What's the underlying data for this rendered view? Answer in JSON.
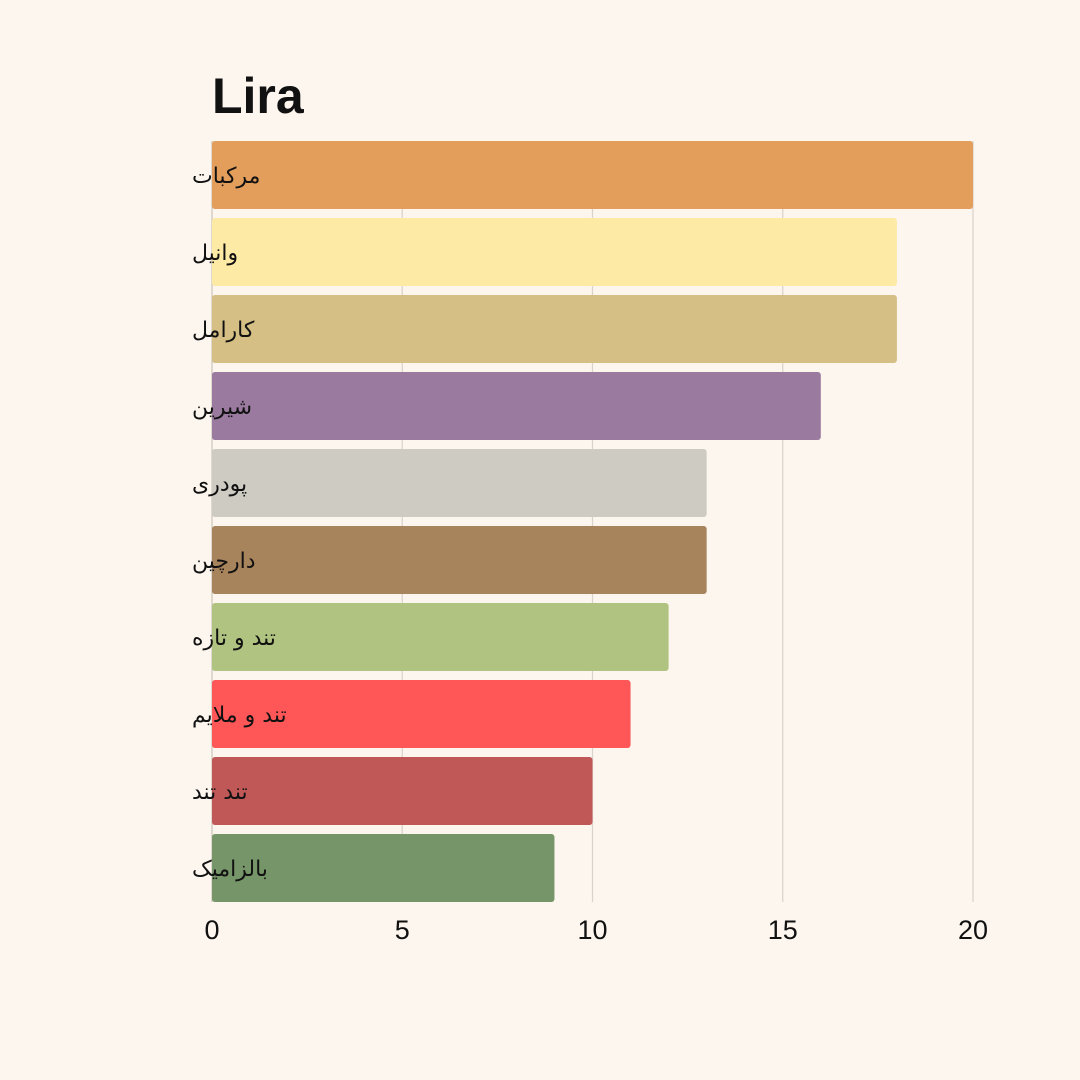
{
  "chart_data": {
    "type": "bar",
    "orientation": "horizontal",
    "title": "Lira",
    "xlabel": "",
    "ylabel": "",
    "categories": [
      "مرکبات",
      "وانیل",
      "کارامل",
      "شیرین",
      "پودری",
      "دارچین",
      "تند و تازه",
      "تند و ملایم",
      "تند تند",
      "بالزامیک"
    ],
    "values": [
      20,
      18,
      18,
      16,
      13,
      13,
      12,
      11,
      10,
      9
    ],
    "colors": [
      "#e39e5c",
      "#fdeaa4",
      "#d5bf85",
      "#9a7a9f",
      "#cecbc3",
      "#a8845c",
      "#b0c380",
      "#ff5757",
      "#c05858",
      "#769569"
    ],
    "xlim": [
      0,
      20
    ],
    "xticks": [
      0,
      5,
      10,
      15,
      20
    ],
    "grid": true,
    "legend": "none",
    "background": "#fdf6ee"
  }
}
